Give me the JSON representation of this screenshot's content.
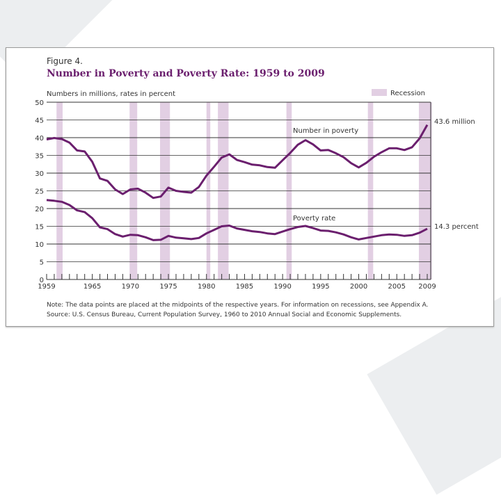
{
  "chart_data": {
    "type": "line",
    "figure_label": "Figure 4.",
    "title": "Number in Poverty and Poverty Rate: 1959 to 2009",
    "ylabel": "Numbers in millions, rates in percent",
    "ylim": [
      0,
      50
    ],
    "yticks": [
      0,
      5,
      10,
      15,
      20,
      25,
      30,
      35,
      40,
      45,
      50
    ],
    "xlim": [
      1959,
      2009
    ],
    "xtick_labels": [
      1959,
      1965,
      1970,
      1975,
      1980,
      1985,
      1990,
      1995,
      2000,
      2005,
      2009
    ],
    "grid": true,
    "line_color": "#6b1f6e",
    "recession_color": "#e2cfe3",
    "legend": {
      "label": "Recession",
      "placement": "top-right"
    },
    "recessions": [
      [
        1960.3,
        1961.1
      ],
      [
        1969.9,
        1970.9
      ],
      [
        1973.9,
        1975.2
      ],
      [
        1980.0,
        1980.5
      ],
      [
        1981.5,
        1982.9
      ],
      [
        1990.5,
        1991.2
      ],
      [
        2001.2,
        2001.9
      ],
      [
        2007.9,
        2009.6
      ]
    ],
    "x": [
      1959,
      1960,
      1961,
      1962,
      1963,
      1964,
      1965,
      1966,
      1967,
      1968,
      1969,
      1970,
      1971,
      1972,
      1973,
      1974,
      1975,
      1976,
      1977,
      1978,
      1979,
      1980,
      1981,
      1982,
      1983,
      1984,
      1985,
      1986,
      1987,
      1988,
      1989,
      1990,
      1991,
      1992,
      1993,
      1994,
      1995,
      1996,
      1997,
      1998,
      1999,
      2000,
      2001,
      2002,
      2003,
      2004,
      2005,
      2006,
      2007,
      2008,
      2009
    ],
    "series": [
      {
        "name": "Number in poverty",
        "end_label": "43.6 million",
        "values": [
          39.5,
          39.9,
          39.6,
          38.6,
          36.4,
          36.1,
          33.2,
          28.5,
          27.8,
          25.4,
          24.1,
          25.4,
          25.6,
          24.5,
          23.0,
          23.4,
          25.9,
          25.0,
          24.7,
          24.5,
          26.1,
          29.3,
          31.8,
          34.4,
          35.3,
          33.7,
          33.1,
          32.4,
          32.2,
          31.7,
          31.5,
          33.6,
          35.7,
          38.0,
          39.3,
          38.1,
          36.4,
          36.5,
          35.6,
          34.5,
          32.8,
          31.6,
          32.9,
          34.6,
          35.9,
          37.0,
          37.0,
          36.5,
          37.3,
          39.8,
          43.6
        ]
      },
      {
        "name": "Poverty rate",
        "end_label": "14.3 percent",
        "values": [
          22.4,
          22.2,
          21.9,
          21.0,
          19.5,
          19.0,
          17.3,
          14.7,
          14.2,
          12.8,
          12.1,
          12.6,
          12.5,
          11.9,
          11.1,
          11.2,
          12.3,
          11.8,
          11.6,
          11.4,
          11.7,
          13.0,
          14.0,
          15.0,
          15.2,
          14.4,
          14.0,
          13.6,
          13.4,
          13.0,
          12.8,
          13.5,
          14.2,
          14.8,
          15.1,
          14.5,
          13.8,
          13.7,
          13.3,
          12.7,
          11.9,
          11.3,
          11.7,
          12.1,
          12.5,
          12.7,
          12.6,
          12.3,
          12.5,
          13.2,
          14.3
        ]
      }
    ],
    "note": "Note:  The data points are placed at the midpoints of the respective years. For information on recessions, see Appendix A.",
    "source": "Source:  U.S. Census Bureau, Current Population Survey, 1960 to 2010 Annual Social and Economic Supplements."
  }
}
